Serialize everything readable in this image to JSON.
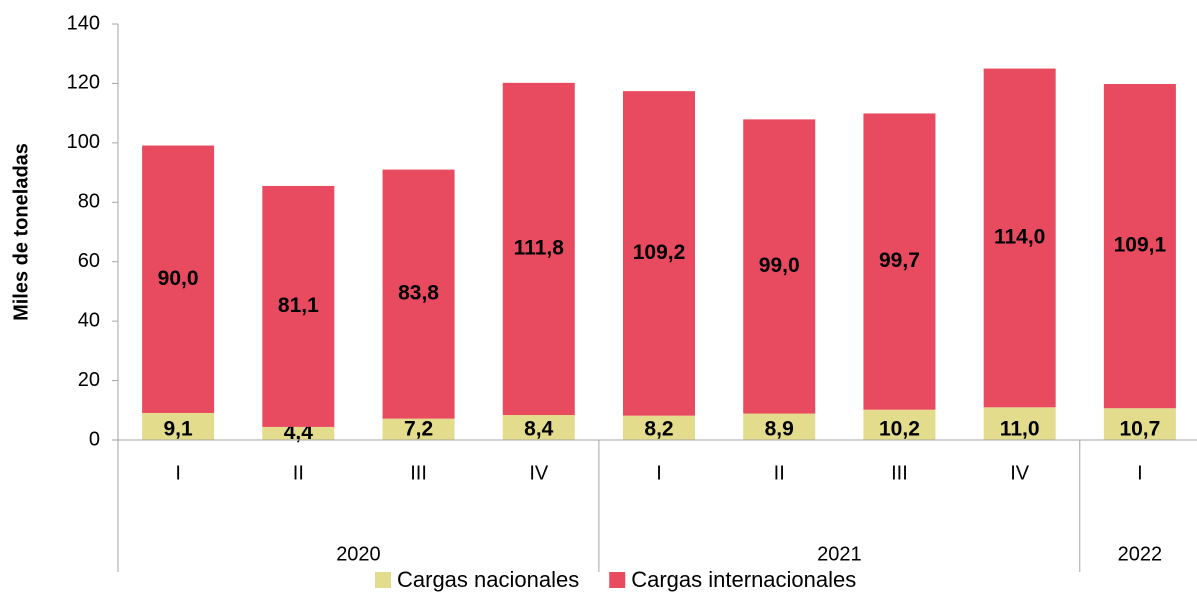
{
  "chart_data": {
    "type": "stacked_bar",
    "y_label": "Miles de toneladas",
    "groups": [
      {
        "name": "2020",
        "categories": [
          "I",
          "II",
          "III",
          "IV"
        ]
      },
      {
        "name": "2021",
        "categories": [
          "I",
          "II",
          "III",
          "IV"
        ]
      },
      {
        "name": "2022",
        "categories": [
          "I"
        ]
      }
    ],
    "series": [
      {
        "name": "Cargas nacionales",
        "color": "#e3dc8c",
        "values": [
          9.1,
          4.4,
          7.2,
          8.4,
          8.2,
          8.9,
          10.2,
          11.0,
          10.7
        ],
        "value_labels": [
          "9,1",
          "4,4",
          "7,2",
          "8,4",
          "8,2",
          "8,9",
          "10,2",
          "11,0",
          "10,7"
        ]
      },
      {
        "name": "Cargas internacionales",
        "color": "#e84a5f",
        "values": [
          90.0,
          81.1,
          83.8,
          111.8,
          109.2,
          99.0,
          99.7,
          114.0,
          109.1
        ],
        "value_labels": [
          "90,0",
          "81,1",
          "83,8",
          "111,8",
          "109,2",
          "99,0",
          "99,7",
          "114,0",
          "109,1"
        ]
      }
    ],
    "ylim": [
      0,
      140
    ],
    "yticks": [
      0,
      20,
      40,
      60,
      80,
      100,
      120,
      140
    ],
    "grid": false,
    "legend": "bottom"
  }
}
